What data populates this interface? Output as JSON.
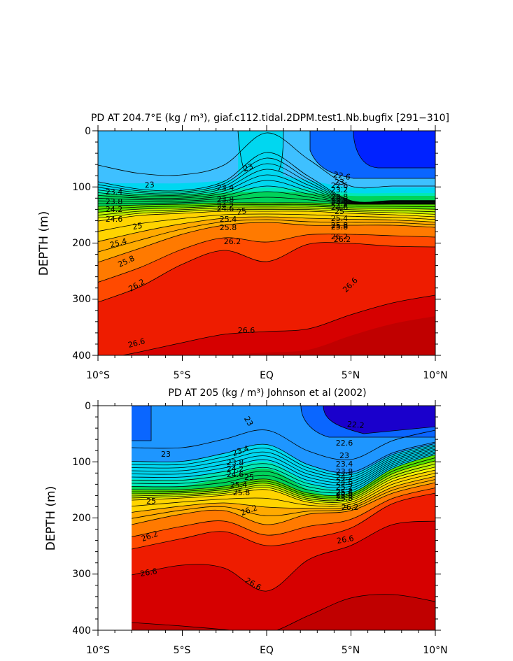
{
  "colors": {
    "levels": [
      "#1a00cc",
      "#0022ff",
      "#0a66ff",
      "#1e96ff",
      "#3ec0ff",
      "#00d7f0",
      "#00e8b8",
      "#00d35a",
      "#54e000",
      "#b8f000",
      "#f8f800",
      "#ffd400",
      "#ffaa00",
      "#ff7a00",
      "#ff4a00",
      "#ee1c00",
      "#d60000",
      "#c00000"
    ],
    "contour_line": "#000000"
  },
  "chart_data": [
    {
      "type": "contour",
      "title": "PD AT 204.7°E (kg / m³), giaf.c112.tidal.2DPM.test1.Nb.bugfix [291−310]",
      "xlabel": "",
      "ylabel": "DEPTH (m)",
      "xlim": [
        -10,
        10
      ],
      "ylim": [
        400,
        0
      ],
      "x_ticks": [
        -10,
        -5,
        0,
        5,
        10
      ],
      "x_tick_labels": [
        "10°S",
        "5°S",
        "EQ",
        "5°N",
        "10°N"
      ],
      "y_ticks": [
        0,
        100,
        200,
        300,
        400
      ],
      "y_tick_labels": [
        "0",
        "100",
        "200",
        "300",
        "400"
      ],
      "contour_interval": 0.2,
      "isopycnal_depths_m": {
        "x_deg": [
          -10,
          -7.5,
          -5,
          -2.5,
          0,
          2.5,
          5,
          7.5,
          10
        ],
        "22.6": [
          null,
          null,
          null,
          null,
          null,
          20,
          90,
          88,
          90
        ],
        "23": [
          60,
          75,
          78,
          60,
          8,
          50,
          105,
          106,
          105
        ],
        "24": [
          135,
          133,
          132,
          130,
          128,
          130,
          131,
          131,
          131
        ],
        "25": [
          160,
          152,
          148,
          145,
          142,
          145,
          148,
          150,
          152
        ],
        "25.8": [
          235,
          210,
          185,
          170,
          166,
          170,
          170,
          170,
          172
        ],
        "26.2": [
          305,
          280,
          240,
          200,
          210,
          195,
          195,
          200,
          200
        ],
        "26.6": [
          410,
          395,
          380,
          365,
          358,
          355,
          330,
          310,
          295
        ]
      },
      "contour_labels": [
        "23",
        "23",
        "22.6",
        "23.4",
        "23.4",
        "23.8",
        "23.8",
        "24.2",
        "24.2",
        "24.6",
        "24.6",
        "25",
        "25",
        "25.4",
        "25.4",
        "25.8",
        "25.8",
        "26.2",
        "26.2",
        "26.6",
        "26.6",
        "26.6",
        "23.2",
        "23.8",
        "24.6",
        "25.4",
        "25.8",
        "26.2",
        "22.6",
        "23",
        "23.8",
        "24.2",
        "25.8",
        "26.2",
        "25"
      ]
    },
    {
      "type": "contour",
      "title": "PD AT 205 (kg / m³) Johnson et al (2002)",
      "xlabel": "",
      "ylabel": "DEPTH (m)",
      "xlim": [
        -10,
        10
      ],
      "ylim": [
        400,
        0
      ],
      "x_ticks": [
        -10,
        -5,
        0,
        5,
        10
      ],
      "x_tick_labels": [
        "10°S",
        "5°S",
        "EQ",
        "5°N",
        "10°N"
      ],
      "y_ticks": [
        0,
        100,
        200,
        300,
        400
      ],
      "y_tick_labels": [
        "0",
        "100",
        "200",
        "300",
        "400"
      ],
      "data_x_range": [
        -8,
        10
      ],
      "contour_interval": 0.2,
      "isopycnal_depths_m": {
        "x_deg": [
          -8,
          -5,
          -2.5,
          0,
          2.5,
          5,
          7.5,
          10
        ],
        "22.2": [
          null,
          null,
          null,
          null,
          5,
          15,
          35,
          20
        ],
        "23": [
          55,
          60,
          55,
          30,
          70,
          85,
          60,
          40
        ],
        "24": [
          130,
          128,
          125,
          110,
          130,
          135,
          100,
          70
        ],
        "25": [
          165,
          155,
          150,
          140,
          155,
          150,
          120,
          100
        ],
        "26.2": [
          250,
          215,
          190,
          220,
          195,
          185,
          160,
          150
        ],
        "26.6": [
          300,
          285,
          290,
          330,
          270,
          245,
          210,
          210
        ]
      },
      "contour_labels": [
        "23",
        "23",
        "23.4",
        "23.4",
        "23.8",
        "23.8",
        "24.2",
        "24.6",
        "24.6",
        "25",
        "25",
        "25.4",
        "25.4",
        "25.8",
        "25.8",
        "26.2",
        "26.2",
        "26.2",
        "26.6",
        "26.6",
        "26.6",
        "22.2",
        "22.6",
        "23",
        "24.2",
        "25.2",
        "25.6",
        "25.8"
      ]
    }
  ]
}
